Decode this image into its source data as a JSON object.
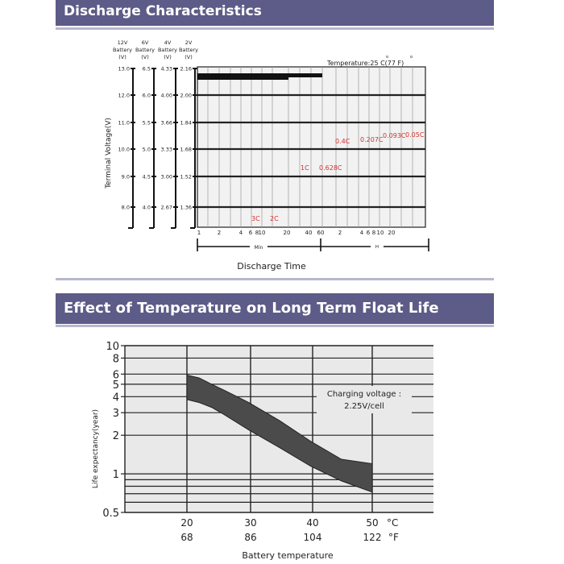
{
  "sections": {
    "discharge_title": "Discharge Characteristics",
    "float_title": "Effect of Temperature on Long Term Float Life"
  },
  "colors": {
    "banner": "#5d5b87",
    "curve_label": "#d0312d",
    "band": "#4b4b4b"
  },
  "chart_data": [
    {
      "type": "line",
      "title": "",
      "condition": "Temperature:25 C(77 F)",
      "condition_degree_marks": [
        "o",
        "o"
      ],
      "ylabel": "Terminal Voltage(V)",
      "xlabel": "Discharge Time",
      "x_unit_labels": {
        "min": "Min",
        "h": "H"
      },
      "x_ticks_min": [
        "1",
        "2",
        "4",
        "6",
        "8",
        "10",
        "20",
        "40",
        "60"
      ],
      "x_ticks_h": [
        "2",
        "4",
        "6",
        "8",
        "10",
        "20"
      ],
      "voltage_columns": [
        {
          "header": [
            "12V",
            "Battery",
            "(V)"
          ],
          "ticks": [
            "13.0",
            "12.0",
            "11.0",
            "10.0",
            "9.0",
            "8.0"
          ]
        },
        {
          "header": [
            "6V",
            "Battery",
            "(V)"
          ],
          "ticks": [
            "6.5",
            "6.0",
            "5.5",
            "5.0",
            "4.5",
            "4.0"
          ]
        },
        {
          "header": [
            "4V",
            "Battery",
            "(V)"
          ],
          "ticks": [
            "4.33",
            "4.00",
            "3.66",
            "3.33",
            "3.00",
            "2.67"
          ]
        },
        {
          "header": [
            "2V",
            "Battery",
            "(V)"
          ],
          "ticks": [
            "2.16",
            "2.00",
            "1.84",
            "1.68",
            "1.52",
            "1.36"
          ]
        }
      ],
      "ylim": [
        7.6,
        13.0
      ],
      "grid": true,
      "series_labels": [
        "3C",
        "2C",
        "1C",
        "0.628C",
        "0.4C",
        "0.207C",
        "0.093C",
        "0.05C"
      ]
    },
    {
      "type": "area",
      "title": "",
      "xlabel": "Battery temperature",
      "ylabel": "Life expectancy(year)",
      "yscale": "log",
      "ylim": [
        0.5,
        10
      ],
      "xlim": [
        20,
        50
      ],
      "x_ticks_c": [
        "20",
        "30",
        "40",
        "50"
      ],
      "x_ticks_f": [
        "68",
        "86",
        "104",
        "122"
      ],
      "x_unit_c": "°C",
      "x_unit_f": "°F",
      "y_ticks": [
        "10",
        "8",
        "6",
        "5",
        "4",
        "3",
        "2",
        "1",
        "0.5"
      ],
      "annotation": [
        "Charging voltage :",
        "2.25V/cell"
      ],
      "grid": true,
      "band": {
        "x": [
          20,
          22,
          24,
          26,
          30,
          35,
          40,
          45,
          50
        ],
        "upper": [
          5.9,
          5.6,
          5.0,
          4.5,
          3.6,
          2.6,
          1.8,
          1.3,
          1.2
        ],
        "lower": [
          3.8,
          3.6,
          3.3,
          2.9,
          2.2,
          1.6,
          1.15,
          0.88,
          0.72
        ]
      }
    }
  ]
}
